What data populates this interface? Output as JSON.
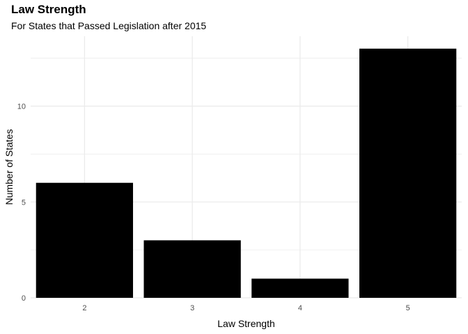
{
  "chart_data": {
    "type": "bar",
    "title": "Law Strength",
    "subtitle": "For States that Passed Legislation after 2015",
    "xlabel": "Law Strength",
    "ylabel": "Number of States",
    "categories": [
      "2",
      "3",
      "4",
      "5"
    ],
    "values": [
      6,
      3,
      1,
      13
    ],
    "ylim": [
      0,
      13.65
    ],
    "yticks": [
      0,
      5,
      10
    ],
    "yticks_minor": [
      2.5,
      7.5,
      12.5
    ],
    "grid": true,
    "bar_color": "#000000",
    "grid_color": "#ebebeb"
  }
}
